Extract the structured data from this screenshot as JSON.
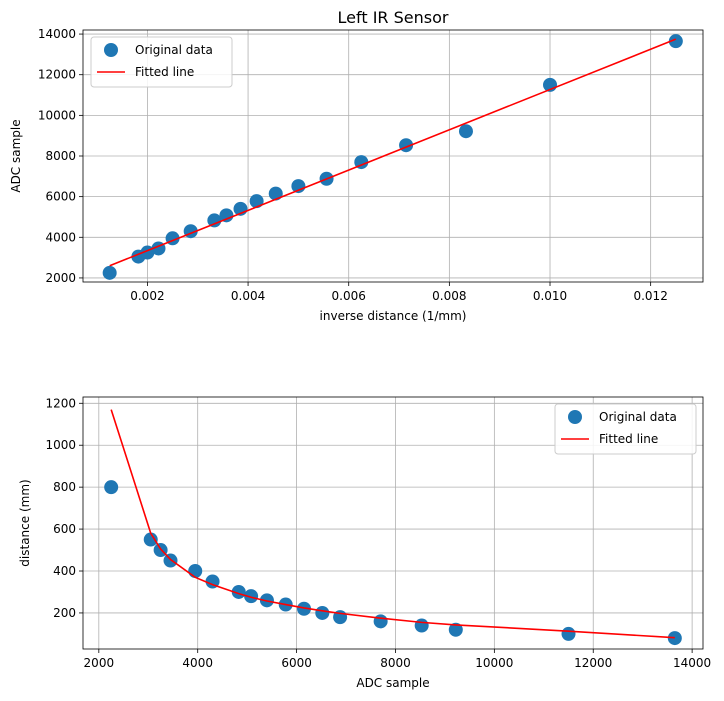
{
  "chart_data": [
    {
      "type": "scatter",
      "title": "Left IR Sensor",
      "xlabel": "inverse distance (1/mm)",
      "ylabel": "ADC sample",
      "xlim": [
        0.00072,
        0.01304
      ],
      "ylim": [
        1800,
        14200
      ],
      "xticks": [
        0.002,
        0.004,
        0.006,
        0.008,
        0.01,
        0.012
      ],
      "xtick_labels": [
        "0.002",
        "0.004",
        "0.006",
        "0.008",
        "0.010",
        "0.012"
      ],
      "yticks": [
        2000,
        4000,
        6000,
        8000,
        10000,
        12000,
        14000
      ],
      "ytick_labels": [
        "2000",
        "4000",
        "6000",
        "8000",
        "10000",
        "12000",
        "14000"
      ],
      "grid": true,
      "legend_position": "upper-left",
      "colors": {
        "points": "#1f77b4",
        "line": "#ff0000"
      },
      "series": [
        {
          "name": "Original data",
          "kind": "points",
          "x": [
            0.00125,
            0.00182,
            0.002,
            0.00222,
            0.0025,
            0.00286,
            0.00333,
            0.00357,
            0.00385,
            0.00417,
            0.00455,
            0.005,
            0.00556,
            0.00625,
            0.00714,
            0.00833,
            0.01,
            0.0125
          ],
          "y": [
            2250,
            3050,
            3250,
            3450,
            3950,
            4300,
            4830,
            5080,
            5400,
            5780,
            6150,
            6520,
            6880,
            7700,
            8530,
            9220,
            11500,
            13650
          ]
        },
        {
          "name": "Fitted line",
          "kind": "line",
          "x": [
            0.00125,
            0.0125
          ],
          "y": [
            2600,
            13750
          ]
        }
      ]
    },
    {
      "type": "scatter",
      "title": "",
      "xlabel": "ADC sample",
      "ylabel": "distance (mm)",
      "xlim": [
        1680,
        14220
      ],
      "ylim": [
        28,
        1230
      ],
      "xticks": [
        2000,
        4000,
        6000,
        8000,
        10000,
        12000,
        14000
      ],
      "xtick_labels": [
        "2000",
        "4000",
        "6000",
        "8000",
        "10000",
        "12000",
        "14000"
      ],
      "yticks": [
        200,
        400,
        600,
        800,
        1000,
        1200
      ],
      "ytick_labels": [
        "200",
        "400",
        "600",
        "800",
        "1000",
        "1200"
      ],
      "grid": true,
      "legend_position": "upper-right",
      "colors": {
        "points": "#1f77b4",
        "line": "#ff0000"
      },
      "series": [
        {
          "name": "Original data",
          "kind": "points",
          "x": [
            2250,
            3050,
            3250,
            3450,
            3950,
            4300,
            4830,
            5080,
            5400,
            5780,
            6150,
            6520,
            6880,
            7700,
            8530,
            9220,
            11500,
            13650
          ],
          "y": [
            800,
            550,
            500,
            450,
            400,
            350,
            300,
            280,
            260,
            240,
            220,
            200,
            180,
            160,
            140,
            120,
            100,
            80
          ]
        },
        {
          "name": "Fitted line",
          "kind": "line",
          "x": [
            2250,
            3050,
            3250,
            3450,
            3950,
            4300,
            4830,
            5080,
            5400,
            5780,
            6150,
            6520,
            6880,
            7700,
            8530,
            9220,
            11500,
            13650
          ],
          "y": [
            1170,
            580,
            505,
            455,
            370,
            335,
            292,
            275,
            257,
            240,
            224,
            210,
            198,
            175,
            155,
            143,
            113,
            82
          ]
        }
      ]
    }
  ]
}
